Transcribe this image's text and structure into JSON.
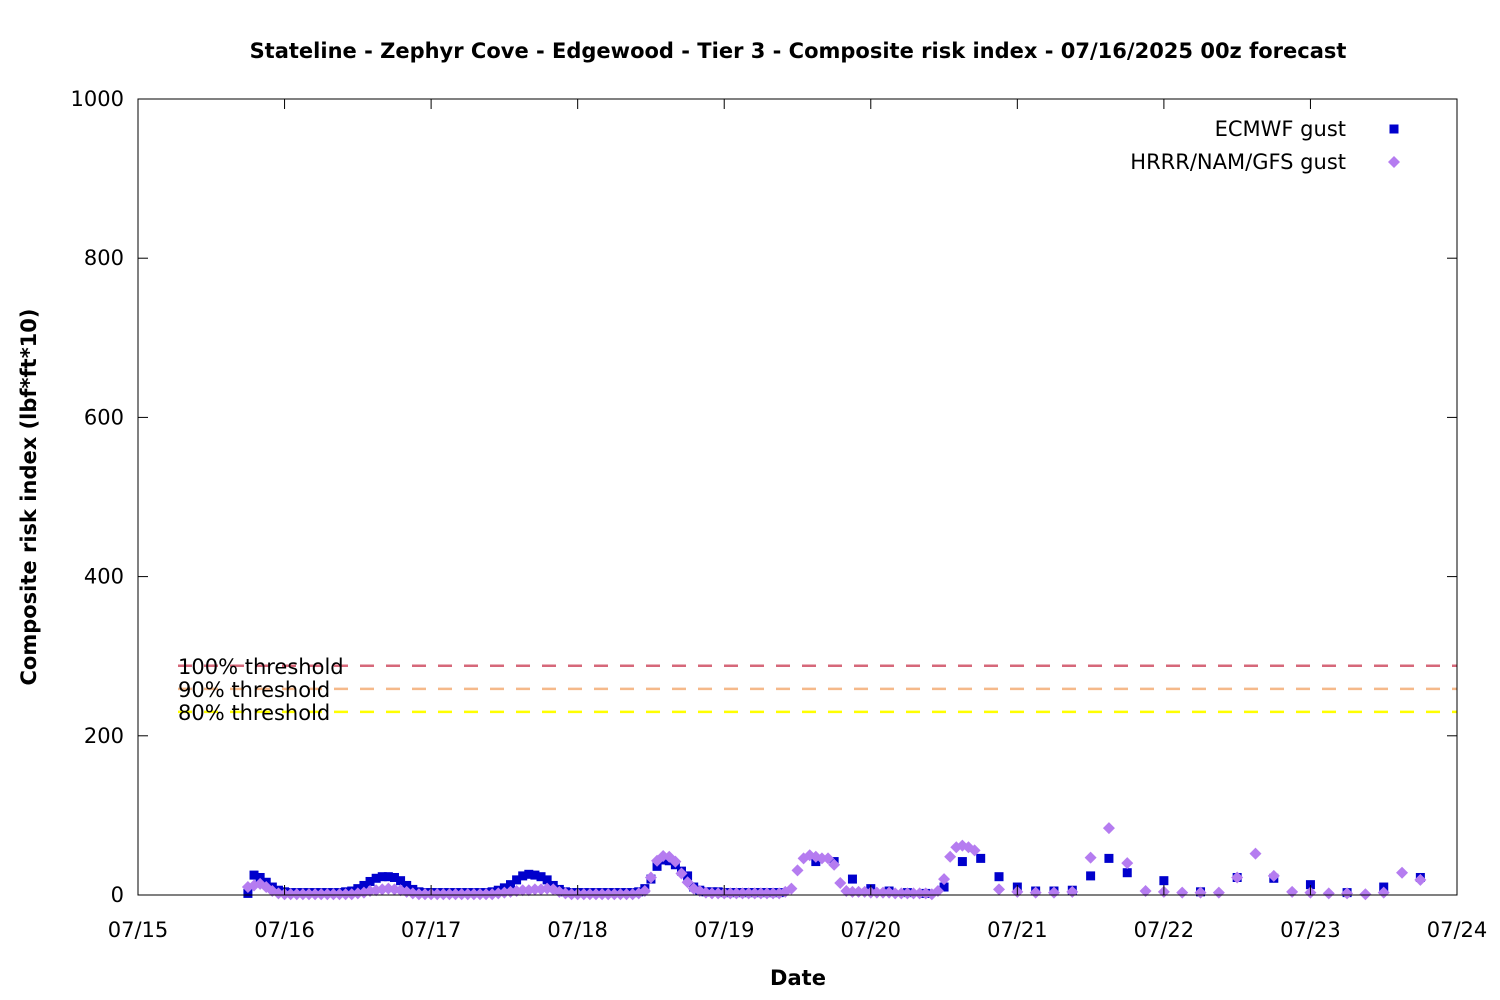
{
  "chart_data": {
    "type": "scatter",
    "title": "Stateline - Zephyr Cove - Edgewood - Tier 3 - Composite risk index - 07/16/2025 00z forecast",
    "xlabel": "Date",
    "ylabel": "Composite risk index (lbf*ft*10)",
    "xlim": [
      "07/15 00:00",
      "07/24 00:00"
    ],
    "ylim": [
      0,
      1000
    ],
    "x_ticks": [
      "07/15",
      "07/16",
      "07/17",
      "07/18",
      "07/19",
      "07/20",
      "07/21",
      "07/22",
      "07/23",
      "07/24"
    ],
    "y_ticks": [
      0,
      200,
      400,
      600,
      800,
      1000
    ],
    "grid": false,
    "legend_position": "top-right",
    "thresholds": [
      {
        "name": "100% threshold",
        "value": 288,
        "color": "#d6687a"
      },
      {
        "name": "90% threshold",
        "value": 259,
        "color": "#f5b98a"
      },
      {
        "name": "80% threshold",
        "value": 230,
        "color": "#ffff00"
      }
    ],
    "series": [
      {
        "name": "ECMWF gust",
        "color": "#0000cc",
        "marker": "square",
        "points": [
          [
            "07/15 18:00",
            2
          ],
          [
            "07/15 19:00",
            25
          ],
          [
            "07/15 20:00",
            22
          ],
          [
            "07/15 21:00",
            16
          ],
          [
            "07/15 22:00",
            10
          ],
          [
            "07/15 23:00",
            6
          ],
          [
            "07/16 00:00",
            4
          ],
          [
            "07/16 01:00",
            3
          ],
          [
            "07/16 02:00",
            3
          ],
          [
            "07/16 03:00",
            3
          ],
          [
            "07/16 04:00",
            3
          ],
          [
            "07/16 05:00",
            3
          ],
          [
            "07/16 06:00",
            3
          ],
          [
            "07/16 07:00",
            3
          ],
          [
            "07/16 08:00",
            3
          ],
          [
            "07/16 09:00",
            3
          ],
          [
            "07/16 10:00",
            4
          ],
          [
            "07/16 11:00",
            5
          ],
          [
            "07/16 12:00",
            8
          ],
          [
            "07/16 13:00",
            12
          ],
          [
            "07/16 14:00",
            17
          ],
          [
            "07/16 15:00",
            21
          ],
          [
            "07/16 16:00",
            23
          ],
          [
            "07/16 17:00",
            23
          ],
          [
            "07/16 18:00",
            22
          ],
          [
            "07/16 19:00",
            18
          ],
          [
            "07/16 20:00",
            12
          ],
          [
            "07/16 21:00",
            7
          ],
          [
            "07/16 22:00",
            4
          ],
          [
            "07/16 23:00",
            3
          ],
          [
            "07/17 00:00",
            3
          ],
          [
            "07/17 01:00",
            3
          ],
          [
            "07/17 02:00",
            3
          ],
          [
            "07/17 03:00",
            3
          ],
          [
            "07/17 04:00",
            3
          ],
          [
            "07/17 05:00",
            3
          ],
          [
            "07/17 06:00",
            3
          ],
          [
            "07/17 07:00",
            3
          ],
          [
            "07/17 08:00",
            3
          ],
          [
            "07/17 09:00",
            3
          ],
          [
            "07/17 10:00",
            4
          ],
          [
            "07/17 11:00",
            6
          ],
          [
            "07/17 12:00",
            9
          ],
          [
            "07/17 13:00",
            13
          ],
          [
            "07/17 14:00",
            19
          ],
          [
            "07/17 15:00",
            24
          ],
          [
            "07/17 16:00",
            26
          ],
          [
            "07/17 17:00",
            25
          ],
          [
            "07/17 18:00",
            23
          ],
          [
            "07/17 19:00",
            19
          ],
          [
            "07/17 20:00",
            12
          ],
          [
            "07/17 21:00",
            7
          ],
          [
            "07/17 22:00",
            4
          ],
          [
            "07/17 23:00",
            3
          ],
          [
            "07/18 00:00",
            3
          ],
          [
            "07/18 01:00",
            3
          ],
          [
            "07/18 02:00",
            3
          ],
          [
            "07/18 03:00",
            3
          ],
          [
            "07/18 04:00",
            3
          ],
          [
            "07/18 05:00",
            3
          ],
          [
            "07/18 06:00",
            3
          ],
          [
            "07/18 07:00",
            3
          ],
          [
            "07/18 08:00",
            3
          ],
          [
            "07/18 09:00",
            3
          ],
          [
            "07/18 10:00",
            4
          ],
          [
            "07/18 11:00",
            8
          ],
          [
            "07/18 12:00",
            20
          ],
          [
            "07/18 13:00",
            36
          ],
          [
            "07/18 14:00",
            44
          ],
          [
            "07/18 15:00",
            43
          ],
          [
            "07/18 16:00",
            38
          ],
          [
            "07/18 17:00",
            30
          ],
          [
            "07/18 18:00",
            24
          ],
          [
            "07/18 19:00",
            10
          ],
          [
            "07/18 20:00",
            6
          ],
          [
            "07/18 21:00",
            4
          ],
          [
            "07/18 22:00",
            4
          ],
          [
            "07/18 23:00",
            4
          ],
          [
            "07/19 00:00",
            3
          ],
          [
            "07/19 01:00",
            3
          ],
          [
            "07/19 02:00",
            3
          ],
          [
            "07/19 03:00",
            3
          ],
          [
            "07/19 04:00",
            3
          ],
          [
            "07/19 05:00",
            3
          ],
          [
            "07/19 06:00",
            3
          ],
          [
            "07/19 07:00",
            3
          ],
          [
            "07/19 08:00",
            3
          ],
          [
            "07/19 09:00",
            3
          ],
          [
            "07/19 15:00",
            42
          ],
          [
            "07/19 18:00",
            42
          ],
          [
            "07/19 21:00",
            20
          ],
          [
            "07/20 00:00",
            8
          ],
          [
            "07/20 03:00",
            5
          ],
          [
            "07/20 06:00",
            3
          ],
          [
            "07/20 09:00",
            2
          ],
          [
            "07/20 12:00",
            10
          ],
          [
            "07/20 15:00",
            42
          ],
          [
            "07/20 18:00",
            46
          ],
          [
            "07/20 21:00",
            23
          ],
          [
            "07/21 00:00",
            10
          ],
          [
            "07/21 03:00",
            5
          ],
          [
            "07/21 06:00",
            5
          ],
          [
            "07/21 09:00",
            6
          ],
          [
            "07/21 12:00",
            24
          ],
          [
            "07/21 15:00",
            46
          ],
          [
            "07/21 18:00",
            28
          ],
          [
            "07/22 00:00",
            18
          ],
          [
            "07/22 06:00",
            4
          ],
          [
            "07/22 12:00",
            22
          ],
          [
            "07/22 18:00",
            21
          ],
          [
            "07/23 00:00",
            13
          ],
          [
            "07/23 06:00",
            3
          ],
          [
            "07/23 12:00",
            10
          ],
          [
            "07/23 18:00",
            22
          ]
        ]
      },
      {
        "name": "HRRR/NAM/GFS gust",
        "color": "#b57cf0",
        "marker": "diamond",
        "points": [
          [
            "07/15 18:00",
            10
          ],
          [
            "07/15 19:00",
            12
          ],
          [
            "07/15 20:00",
            14
          ],
          [
            "07/15 21:00",
            10
          ],
          [
            "07/15 22:00",
            5
          ],
          [
            "07/15 23:00",
            2
          ],
          [
            "07/16 00:00",
            1
          ],
          [
            "07/16 01:00",
            1
          ],
          [
            "07/16 02:00",
            1
          ],
          [
            "07/16 03:00",
            1
          ],
          [
            "07/16 04:00",
            1
          ],
          [
            "07/16 05:00",
            1
          ],
          [
            "07/16 06:00",
            1
          ],
          [
            "07/16 07:00",
            1
          ],
          [
            "07/16 08:00",
            1
          ],
          [
            "07/16 09:00",
            1
          ],
          [
            "07/16 10:00",
            1
          ],
          [
            "07/16 11:00",
            1
          ],
          [
            "07/16 12:00",
            2
          ],
          [
            "07/16 13:00",
            3
          ],
          [
            "07/16 14:00",
            5
          ],
          [
            "07/16 15:00",
            6
          ],
          [
            "07/16 16:00",
            7
          ],
          [
            "07/16 17:00",
            8
          ],
          [
            "07/16 18:00",
            7
          ],
          [
            "07/16 19:00",
            6
          ],
          [
            "07/16 20:00",
            4
          ],
          [
            "07/16 21:00",
            2
          ],
          [
            "07/16 22:00",
            1
          ],
          [
            "07/16 23:00",
            1
          ],
          [
            "07/17 00:00",
            1
          ],
          [
            "07/17 01:00",
            1
          ],
          [
            "07/17 02:00",
            1
          ],
          [
            "07/17 03:00",
            1
          ],
          [
            "07/17 04:00",
            1
          ],
          [
            "07/17 05:00",
            1
          ],
          [
            "07/17 06:00",
            1
          ],
          [
            "07/17 07:00",
            1
          ],
          [
            "07/17 08:00",
            1
          ],
          [
            "07/17 09:00",
            1
          ],
          [
            "07/17 10:00",
            1
          ],
          [
            "07/17 11:00",
            2
          ],
          [
            "07/17 12:00",
            3
          ],
          [
            "07/17 13:00",
            4
          ],
          [
            "07/17 14:00",
            5
          ],
          [
            "07/17 15:00",
            6
          ],
          [
            "07/17 16:00",
            6
          ],
          [
            "07/17 17:00",
            7
          ],
          [
            "07/17 18:00",
            7
          ],
          [
            "07/17 19:00",
            8
          ],
          [
            "07/17 20:00",
            7
          ],
          [
            "07/17 21:00",
            4
          ],
          [
            "07/17 22:00",
            2
          ],
          [
            "07/17 23:00",
            1
          ],
          [
            "07/18 00:00",
            1
          ],
          [
            "07/18 01:00",
            1
          ],
          [
            "07/18 02:00",
            1
          ],
          [
            "07/18 03:00",
            1
          ],
          [
            "07/18 04:00",
            1
          ],
          [
            "07/18 05:00",
            1
          ],
          [
            "07/18 06:00",
            1
          ],
          [
            "07/18 07:00",
            1
          ],
          [
            "07/18 08:00",
            1
          ],
          [
            "07/18 09:00",
            1
          ],
          [
            "07/18 10:00",
            2
          ],
          [
            "07/18 11:00",
            5
          ],
          [
            "07/18 12:00",
            22
          ],
          [
            "07/18 13:00",
            43
          ],
          [
            "07/18 14:00",
            49
          ],
          [
            "07/18 15:00",
            48
          ],
          [
            "07/18 16:00",
            42
          ],
          [
            "07/18 17:00",
            27
          ],
          [
            "07/18 18:00",
            16
          ],
          [
            "07/18 19:00",
            8
          ],
          [
            "07/18 20:00",
            5
          ],
          [
            "07/18 21:00",
            3
          ],
          [
            "07/18 22:00",
            2
          ],
          [
            "07/18 23:00",
            2
          ],
          [
            "07/19 00:00",
            2
          ],
          [
            "07/19 01:00",
            2
          ],
          [
            "07/19 02:00",
            2
          ],
          [
            "07/19 03:00",
            2
          ],
          [
            "07/19 04:00",
            2
          ],
          [
            "07/19 05:00",
            2
          ],
          [
            "07/19 06:00",
            2
          ],
          [
            "07/19 07:00",
            2
          ],
          [
            "07/19 08:00",
            2
          ],
          [
            "07/19 09:00",
            2
          ],
          [
            "07/19 10:00",
            4
          ],
          [
            "07/19 11:00",
            8
          ],
          [
            "07/19 12:00",
            31
          ],
          [
            "07/19 13:00",
            46
          ],
          [
            "07/19 14:00",
            50
          ],
          [
            "07/19 15:00",
            48
          ],
          [
            "07/19 16:00",
            46
          ],
          [
            "07/19 17:00",
            46
          ],
          [
            "07/19 18:00",
            38
          ],
          [
            "07/19 19:00",
            15
          ],
          [
            "07/19 20:00",
            5
          ],
          [
            "07/19 21:00",
            4
          ],
          [
            "07/19 22:00",
            4
          ],
          [
            "07/19 23:00",
            4
          ],
          [
            "07/20 00:00",
            3
          ],
          [
            "07/20 01:00",
            3
          ],
          [
            "07/20 02:00",
            3
          ],
          [
            "07/20 03:00",
            3
          ],
          [
            "07/20 04:00",
            2
          ],
          [
            "07/20 05:00",
            2
          ],
          [
            "07/20 06:00",
            2
          ],
          [
            "07/20 07:00",
            2
          ],
          [
            "07/20 08:00",
            2
          ],
          [
            "07/20 09:00",
            2
          ],
          [
            "07/20 10:00",
            1
          ],
          [
            "07/20 11:00",
            5
          ],
          [
            "07/20 12:00",
            20
          ],
          [
            "07/20 13:00",
            48
          ],
          [
            "07/20 14:00",
            60
          ],
          [
            "07/20 15:00",
            62
          ],
          [
            "07/20 16:00",
            60
          ],
          [
            "07/20 17:00",
            56
          ],
          [
            "07/20 21:00",
            7
          ],
          [
            "07/21 00:00",
            4
          ],
          [
            "07/21 03:00",
            3
          ],
          [
            "07/21 06:00",
            3
          ],
          [
            "07/21 09:00",
            4
          ],
          [
            "07/21 12:00",
            47
          ],
          [
            "07/21 15:00",
            84
          ],
          [
            "07/21 18:00",
            40
          ],
          [
            "07/21 21:00",
            5
          ],
          [
            "07/22 00:00",
            4
          ],
          [
            "07/22 03:00",
            3
          ],
          [
            "07/22 06:00",
            3
          ],
          [
            "07/22 09:00",
            3
          ],
          [
            "07/22 12:00",
            22
          ],
          [
            "07/22 15:00",
            52
          ],
          [
            "07/22 18:00",
            24
          ],
          [
            "07/22 21:00",
            4
          ],
          [
            "07/23 00:00",
            3
          ],
          [
            "07/23 03:00",
            2
          ],
          [
            "07/23 06:00",
            2
          ],
          [
            "07/23 09:00",
            1
          ],
          [
            "07/23 12:00",
            3
          ],
          [
            "07/23 15:00",
            28
          ],
          [
            "07/23 18:00",
            19
          ]
        ]
      }
    ]
  }
}
